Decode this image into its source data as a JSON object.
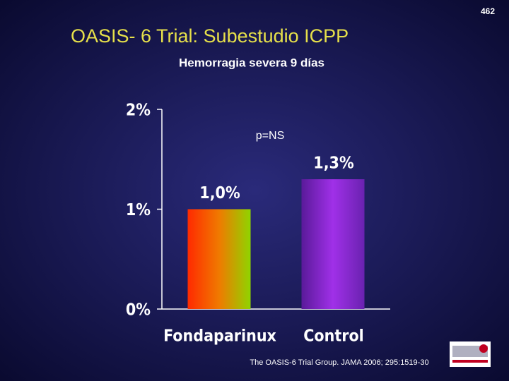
{
  "page_number": "462",
  "chart_data": {
    "type": "bar",
    "title": "OASIS- 6 Trial: Subestudio ICPP",
    "subtitle": "Hemorragia severa 9 días",
    "annotation": "p=NS",
    "source": "The OASIS-6 Trial Group. JAMA 2006; 295:1519-30",
    "categories": [
      "Fondaparinux",
      "Control"
    ],
    "values": [
      1.0,
      1.3
    ],
    "value_labels": [
      "1,0%",
      "1,3%"
    ],
    "colors": [
      [
        "#ff2a00",
        "#f07a00",
        "#8fd400"
      ],
      [
        "#5a1a9a",
        "#a030e8",
        "#6a22b0"
      ]
    ],
    "ylim": [
      0,
      2
    ],
    "yticks": [
      {
        "value": 0,
        "label": "0%"
      },
      {
        "value": 1,
        "label": "1%"
      },
      {
        "value": 2,
        "label": "2%"
      }
    ],
    "grid": false
  }
}
